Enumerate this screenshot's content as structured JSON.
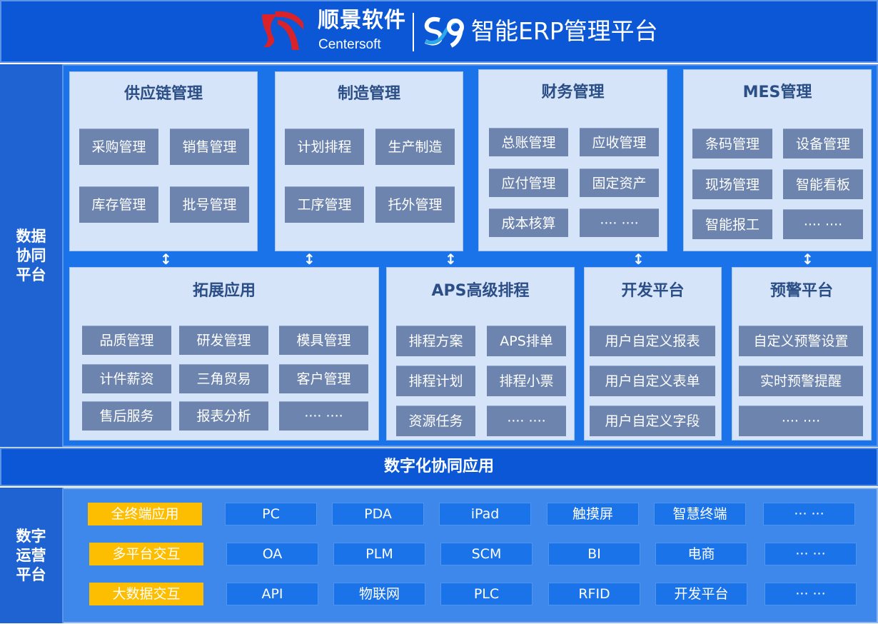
{
  "header": {
    "brand_cn": "顺景软件",
    "brand_en": "Centersoft",
    "product_logo": "S9",
    "title": "智能ERP管理平台"
  },
  "side_labels": {
    "data": "数据\n协同\n平台",
    "ops": "数字\n运营\n平台"
  },
  "top_modules": [
    {
      "title": "供应链管理",
      "items": [
        "采购管理",
        "销售管理",
        "库存管理",
        "批号管理"
      ]
    },
    {
      "title": "制造管理",
      "items": [
        "计划排程",
        "生产制造",
        "工序管理",
        "托外管理"
      ]
    },
    {
      "title": "财务管理",
      "items": [
        "总账管理",
        "应收管理",
        "应付管理",
        "固定资产",
        "成本核算",
        "···· ····"
      ]
    },
    {
      "title": "MES管理",
      "items": [
        "条码管理",
        "设备管理",
        "现场管理",
        "智能看板",
        "智能报工",
        "···· ····"
      ]
    }
  ],
  "bottom_modules": [
    {
      "title": "拓展应用",
      "items": [
        "品质管理",
        "研发管理",
        "模具管理",
        "计件薪资",
        "三角贸易",
        "客户管理",
        "售后服务",
        "报表分析",
        "···· ····"
      ]
    },
    {
      "title": "APS高级排程",
      "items": [
        "排程方案",
        "APS排单",
        "排程计划",
        "排程小票",
        "资源任务",
        "···· ····"
      ]
    },
    {
      "title": "开发平台",
      "items": [
        "用户自定义报表",
        "用户自定义表单",
        "用户自定义字段"
      ]
    },
    {
      "title": "预警平台",
      "items": [
        "自定义预警设置",
        "实时预警提醒",
        "···· ····"
      ]
    }
  ],
  "band_title": "数字化协同应用",
  "ops_rows": [
    {
      "label": "全终端应用",
      "items": [
        "PC",
        "PDA",
        "iPad",
        "触摸屏",
        "智慧终端",
        "··· ···"
      ]
    },
    {
      "label": "多平台交互",
      "items": [
        "OA",
        "PLM",
        "SCM",
        "BI",
        "电商",
        "··· ···"
      ]
    },
    {
      "label": "大数据交互",
      "items": [
        "API",
        "物联网",
        "PLC",
        "RFID",
        "开发平台",
        "··· ···"
      ]
    }
  ],
  "colors": {
    "header": "#0b57d6",
    "main": "#1a73e8",
    "card": "#d5e4f8",
    "item": "#6c84ae",
    "highlight": "#fdbd00"
  }
}
